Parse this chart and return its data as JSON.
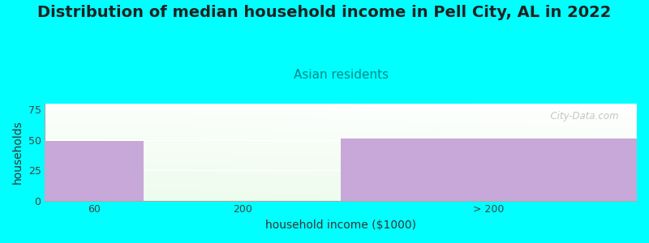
{
  "title": "Distribution of median household income in Pell City, AL in 2022",
  "subtitle": "Asian residents",
  "xlabel": "household income ($1000)",
  "ylabel": "households",
  "background_color": "#00FFFF",
  "bar_categories": [
    "60",
    "200",
    "> 200"
  ],
  "bar_values": [
    49,
    0,
    51
  ],
  "bar_colors": [
    "#C8A8D8",
    null,
    "#C8A8D8"
  ],
  "ylim": [
    0,
    80
  ],
  "yticks": [
    0,
    25,
    50,
    75
  ],
  "title_fontsize": 14,
  "subtitle_fontsize": 11,
  "subtitle_color": "#008B8B",
  "axis_label_fontsize": 10,
  "tick_fontsize": 9,
  "watermark": "  City-Data.com"
}
